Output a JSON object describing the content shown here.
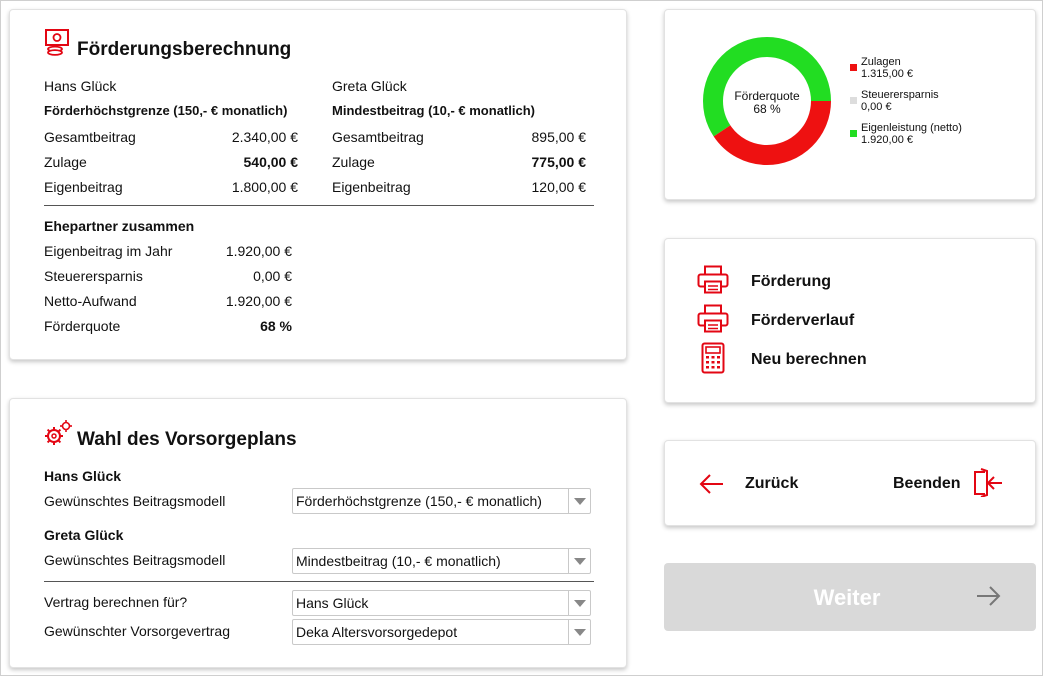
{
  "foerderung": {
    "title": "Förderungsberechnung",
    "person1": {
      "name": "Hans Glück",
      "model": "Förderhöchstgrenze (150,- € monatlich)",
      "rows": [
        {
          "label": "Gesamtbeitrag",
          "value": "2.340,00 €"
        },
        {
          "label": "Zulage",
          "value": "540,00 €"
        },
        {
          "label": "Eigenbeitrag",
          "value": "1.800,00 €"
        }
      ]
    },
    "person2": {
      "name": "Greta Glück",
      "model": "Mindestbeitrag (10,- € monatlich)",
      "rows": [
        {
          "label": "Gesamtbeitrag",
          "value": "895,00 €"
        },
        {
          "label": "Zulage",
          "value": "775,00 €"
        },
        {
          "label": "Eigenbeitrag",
          "value": "120,00 €"
        }
      ]
    },
    "together": {
      "heading": "Ehepartner zusammen",
      "rows": [
        {
          "label": "Eigenbeitrag im Jahr",
          "value": "1.920,00 €"
        },
        {
          "label": "Steuerersparnis",
          "value": "0,00 €"
        },
        {
          "label": "Netto-Aufwand",
          "value": "1.920,00 €"
        },
        {
          "label": "Förderquote",
          "value": "68 %"
        }
      ]
    }
  },
  "vorsorge": {
    "title": "Wahl des Vorsorgeplans",
    "person1": {
      "name": "Hans Glück",
      "label": "Gewünschtes Beitragsmodell",
      "selected": "Förderhöchstgrenze (150,- € monatlich)"
    },
    "person2": {
      "name": "Greta Glück",
      "label": "Gewünschtes Beitragsmodell",
      "selected": "Mindestbeitrag (10,- € monatlich)"
    },
    "vertrag_fuer": {
      "label": "Vertrag berechnen für?",
      "selected": "Hans Glück"
    },
    "vorsorgevertrag": {
      "label": "Gewünschter Vorsorgevertrag",
      "selected": "Deka Altersvorsorgedepot"
    }
  },
  "chart_data": {
    "type": "pie",
    "center_label": "Förderquote",
    "center_value": "68 %",
    "series": [
      {
        "name": "Zulagen",
        "value_label": "1.315,00 €",
        "value": 1315.0,
        "color": "#ee1111"
      },
      {
        "name": "Steuerersparnis",
        "value_label": "0,00 €",
        "value": 0.0,
        "color": "#dddddd"
      },
      {
        "name": "Eigenleistung (netto)",
        "value_label": "1.920,00 €",
        "value": 1920.0,
        "color": "#22dd22"
      }
    ]
  },
  "actions": {
    "foerderung": "Förderung",
    "foerderverlauf": "Förderverlauf",
    "neu_berechnen": "Neu berechnen"
  },
  "nav": {
    "zurueck": "Zurück",
    "beenden": "Beenden",
    "weiter": "Weiter"
  },
  "colors": {
    "accent": "#e30613",
    "disabled_bg": "#d9d9d9",
    "disabled_text": "#ffffff"
  }
}
